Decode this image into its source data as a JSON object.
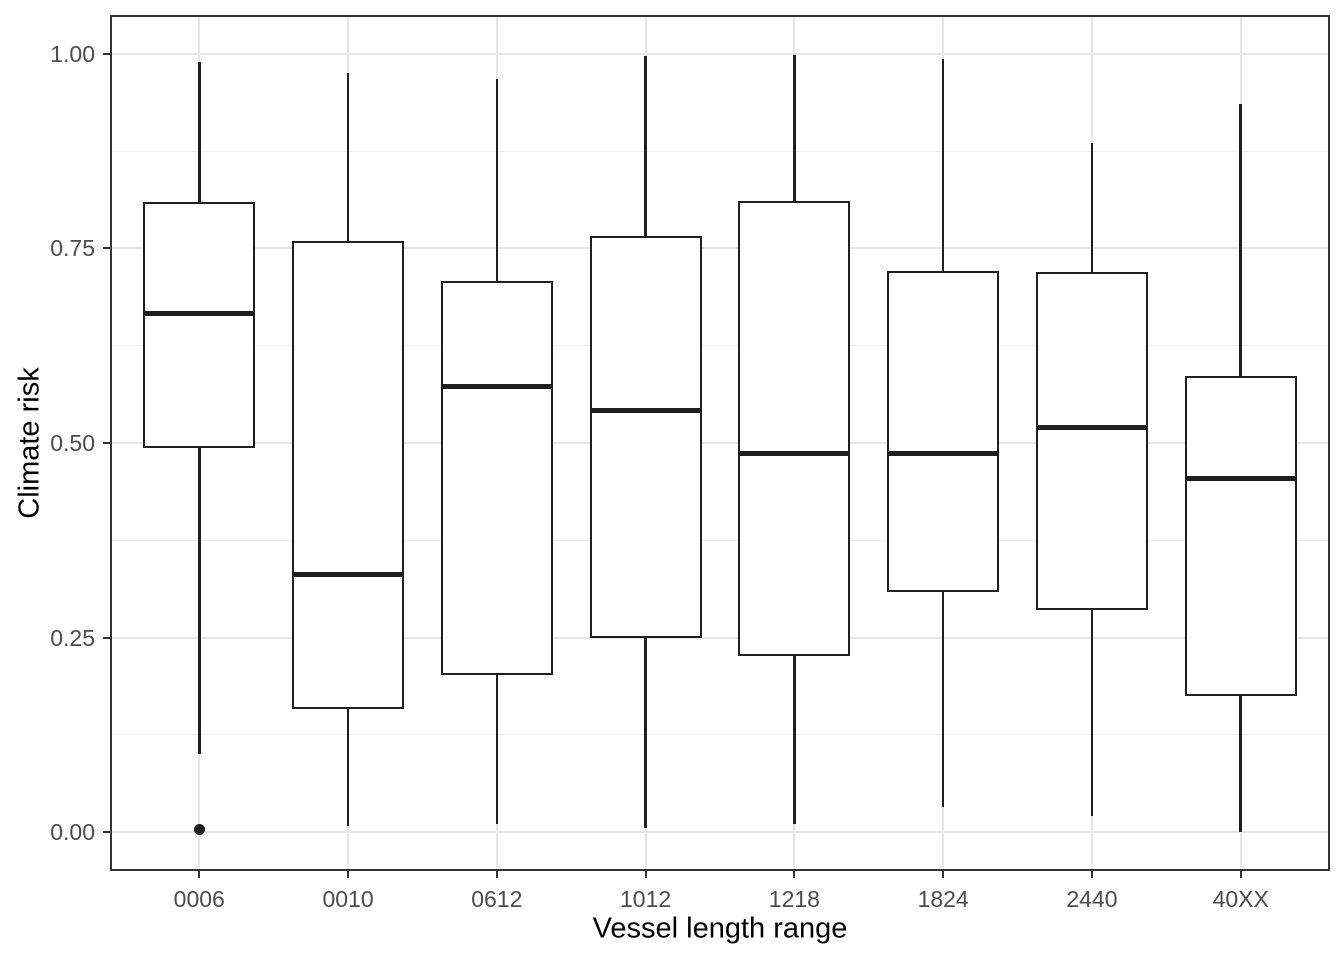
{
  "chart_data": {
    "type": "boxplot",
    "title": "",
    "xlabel": "Vessel length range",
    "ylabel": "Climate risk",
    "categories": [
      "0006",
      "0010",
      "0612",
      "1012",
      "1218",
      "1824",
      "2440",
      "40XX"
    ],
    "boxes": [
      {
        "category": "0006",
        "whisker_low": 0.1,
        "q1": 0.495,
        "median": 0.667,
        "q3": 0.808,
        "whisker_high": 0.99,
        "outliers": [
          0.003
        ]
      },
      {
        "category": "0010",
        "whisker_low": 0.008,
        "q1": 0.16,
        "median": 0.331,
        "q3": 0.758,
        "whisker_high": 0.976,
        "outliers": []
      },
      {
        "category": "0612",
        "whisker_low": 0.01,
        "q1": 0.203,
        "median": 0.572,
        "q3": 0.707,
        "whisker_high": 0.968,
        "outliers": []
      },
      {
        "category": "1012",
        "whisker_low": 0.005,
        "q1": 0.251,
        "median": 0.542,
        "q3": 0.764,
        "whisker_high": 0.997,
        "outliers": []
      },
      {
        "category": "1218",
        "whisker_low": 0.01,
        "q1": 0.228,
        "median": 0.486,
        "q3": 0.81,
        "whisker_high": 0.999,
        "outliers": []
      },
      {
        "category": "1824",
        "whisker_low": 0.032,
        "q1": 0.31,
        "median": 0.486,
        "q3": 0.719,
        "whisker_high": 0.994,
        "outliers": []
      },
      {
        "category": "2440",
        "whisker_low": 0.021,
        "q1": 0.287,
        "median": 0.52,
        "q3": 0.718,
        "whisker_high": 0.886,
        "outliers": []
      },
      {
        "category": "40XX",
        "whisker_low": 0.0,
        "q1": 0.177,
        "median": 0.455,
        "q3": 0.584,
        "whisker_high": 0.936,
        "outliers": []
      }
    ],
    "y_axis": {
      "range": [
        -0.05,
        1.05
      ],
      "major_ticks": [
        {
          "value": 0.0,
          "label": "0.00"
        },
        {
          "value": 0.25,
          "label": "0.25"
        },
        {
          "value": 0.5,
          "label": "0.50"
        },
        {
          "value": 0.75,
          "label": "0.75"
        },
        {
          "value": 1.0,
          "label": "1.00"
        }
      ],
      "minor_ticks": [
        0.125,
        0.375,
        0.625,
        0.875
      ]
    },
    "grid": {
      "horizontal": "major+minor",
      "vertical": "major at each category"
    },
    "legend_position": "none"
  },
  "colors": {
    "background": "#ffffff",
    "panel_background": "#ffffff",
    "panel_border": "#333333",
    "grid_major": "#e6e6e6",
    "grid_minor": "#f1f1f1",
    "box_stroke": "#1f1f1f",
    "median_stroke": "#1f1f1f",
    "whisker_stroke": "#1f1f1f",
    "outlier_fill": "#1f1f1f",
    "tick_mark": "#333333",
    "tick_label_text": "#4d4d4d",
    "axis_title_text": "#000000"
  }
}
